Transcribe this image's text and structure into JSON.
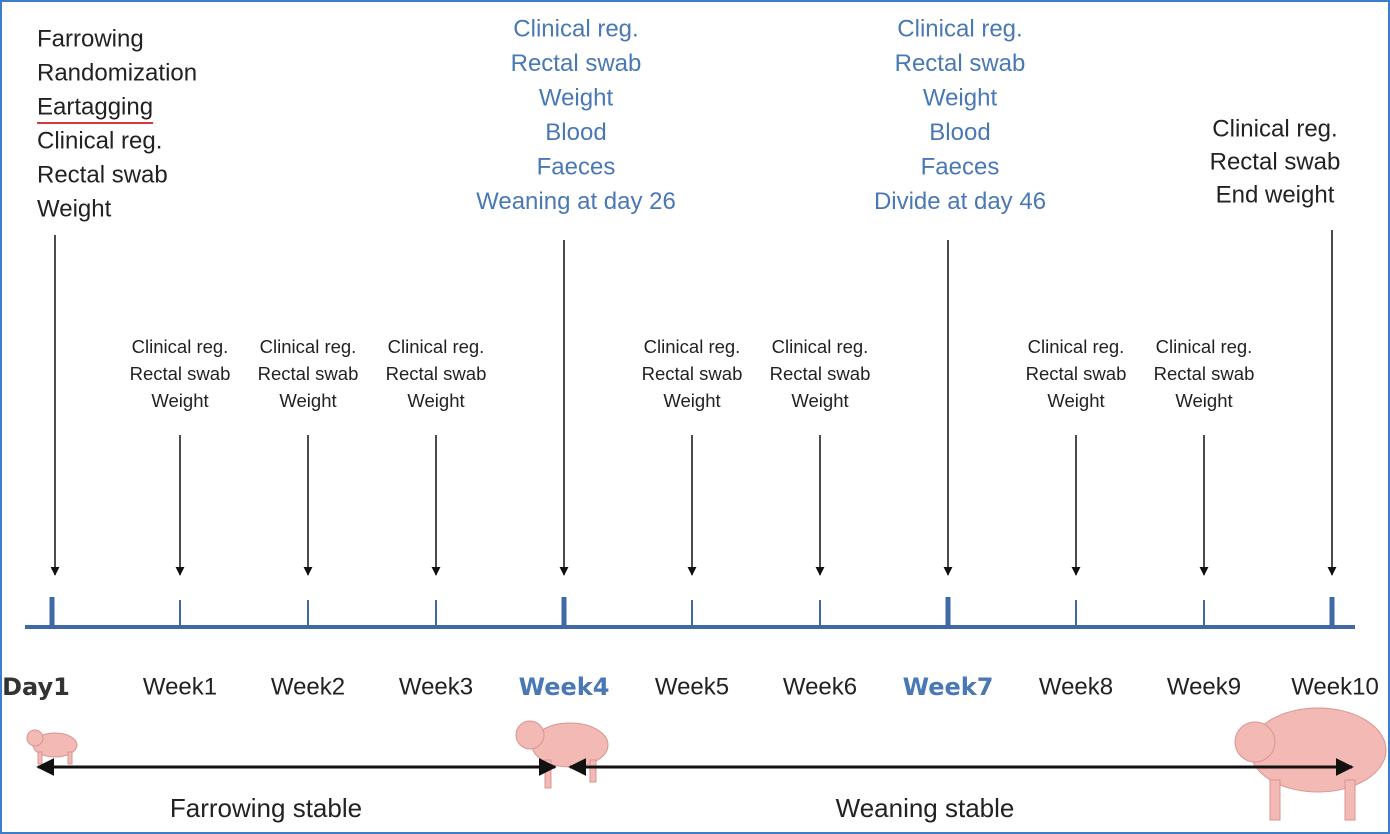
{
  "timeline": {
    "timepoints": [
      {
        "label": "Day1",
        "notes": [
          "Farrowing",
          "Randomization",
          "Eartagging",
          "Clinical reg.",
          "Rectal swab",
          "Weight"
        ]
      },
      {
        "label": "Week1",
        "notes": [
          "Clinical reg.",
          "Rectal swab",
          "Weight"
        ]
      },
      {
        "label": "Week2",
        "notes": [
          "Clinical reg.",
          "Rectal swab",
          "Weight"
        ]
      },
      {
        "label": "Week3",
        "notes": [
          "Clinical reg.",
          "Rectal swab",
          "Weight"
        ]
      },
      {
        "label": "Week4",
        "notes": [
          "Clinical reg.",
          "Rectal swab",
          "Weight",
          "Blood",
          "Faeces",
          "Weaning at day 26"
        ]
      },
      {
        "label": "Week5",
        "notes": [
          "Clinical reg.",
          "Rectal swab",
          "Weight"
        ]
      },
      {
        "label": "Week6",
        "notes": [
          "Clinical reg.",
          "Rectal swab",
          "Weight"
        ]
      },
      {
        "label": "Week7",
        "notes": [
          "Clinical reg.",
          "Rectal swab",
          "Weight",
          "Blood",
          "Faeces",
          "Divide at day 46"
        ]
      },
      {
        "label": "Week8",
        "notes": [
          "Clinical reg.",
          "Rectal swab",
          "Weight"
        ]
      },
      {
        "label": "Week9",
        "notes": [
          "Clinical reg.",
          "Rectal swab",
          "Weight"
        ]
      },
      {
        "label": "Week10",
        "notes": [
          "Clinical reg.",
          "Rectal swab",
          "End weight"
        ]
      }
    ],
    "phases": [
      "Farrowing stable",
      "Weaning stable"
    ]
  }
}
